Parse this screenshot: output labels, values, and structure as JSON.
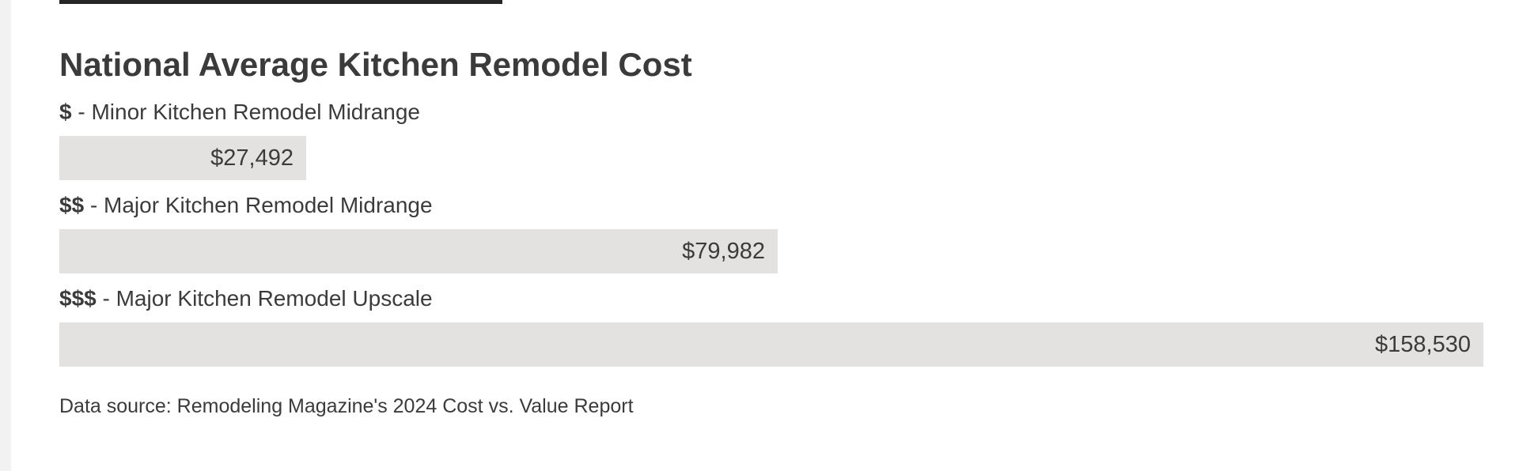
{
  "chart_data": {
    "type": "bar",
    "orientation": "horizontal",
    "title": "National Average Kitchen Remodel Cost",
    "categories": [
      {
        "tier": "$",
        "label": " - Minor Kitchen Remodel Midrange"
      },
      {
        "tier": "$$",
        "label": " - Major Kitchen Remodel Midrange"
      },
      {
        "tier": "$$$",
        "label": " - Major Kitchen Remodel Upscale"
      }
    ],
    "values": [
      27492,
      79982,
      158530
    ],
    "value_labels": [
      "$27,492",
      "$79,982",
      "$158,530"
    ],
    "xlim": [
      0,
      158530
    ],
    "grid": false,
    "bar_color": "#e4e2e0"
  },
  "source_note": "Data source: Remodeling Magazine's 2024 Cost vs. Value Report"
}
